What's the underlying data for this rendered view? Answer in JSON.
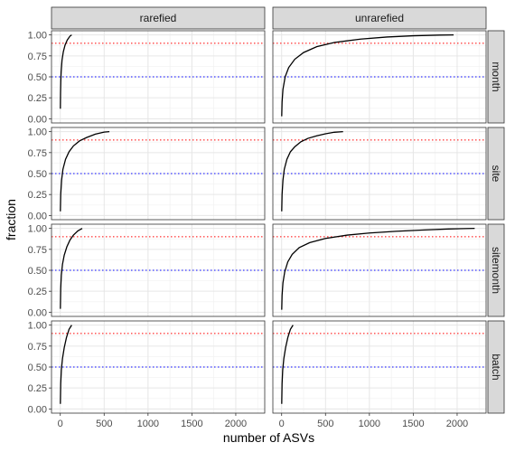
{
  "chart_data": {
    "type": "line",
    "xlabel": "number of ASVs",
    "ylabel": "fraction",
    "xlim": [
      -100,
      2330
    ],
    "ylim": [
      -0.05,
      1.05
    ],
    "x_ticks": [
      0,
      500,
      1000,
      1500,
      2000
    ],
    "y_ticks": [
      0.0,
      0.25,
      0.5,
      0.75,
      1.0
    ],
    "x_tick_labels": [
      "0",
      "500",
      "1000",
      "1500",
      "2000"
    ],
    "y_tick_labels": [
      "0.00",
      "0.25",
      "0.50",
      "0.75",
      "1.00"
    ],
    "columns": [
      "rarefied",
      "unrarefied"
    ],
    "rows": [
      "month",
      "site",
      "sitemonth",
      "batch"
    ],
    "reference_lines": [
      {
        "y": 0.9,
        "color": "#ff0000",
        "style": "dotted"
      },
      {
        "y": 0.5,
        "color": "#0000ff",
        "style": "dotted"
      }
    ],
    "panels": [
      {
        "row": "month",
        "col": "rarefied",
        "x": [
          1,
          3,
          6,
          10,
          20,
          35,
          55,
          80,
          110,
          130
        ],
        "y": [
          0.12,
          0.3,
          0.45,
          0.56,
          0.7,
          0.8,
          0.88,
          0.94,
          0.985,
          1.0
        ]
      },
      {
        "row": "month",
        "col": "unrarefied",
        "x": [
          1,
          5,
          15,
          40,
          80,
          150,
          250,
          400,
          600,
          900,
          1200,
          1500,
          1800,
          1960
        ],
        "y": [
          0.03,
          0.2,
          0.35,
          0.5,
          0.61,
          0.71,
          0.79,
          0.86,
          0.91,
          0.95,
          0.975,
          0.99,
          0.998,
          1.0
        ]
      },
      {
        "row": "site",
        "col": "rarefied",
        "x": [
          1,
          5,
          15,
          30,
          60,
          100,
          150,
          220,
          300,
          400,
          500,
          560
        ],
        "y": [
          0.05,
          0.25,
          0.42,
          0.55,
          0.67,
          0.76,
          0.83,
          0.89,
          0.93,
          0.97,
          0.995,
          1.0
        ]
      },
      {
        "row": "site",
        "col": "unrarefied",
        "x": [
          1,
          5,
          15,
          30,
          60,
          100,
          150,
          220,
          300,
          400,
          500,
          600,
          700
        ],
        "y": [
          0.05,
          0.25,
          0.42,
          0.55,
          0.67,
          0.76,
          0.82,
          0.88,
          0.92,
          0.95,
          0.975,
          0.993,
          1.0
        ]
      },
      {
        "row": "sitemonth",
        "col": "rarefied",
        "x": [
          1,
          5,
          12,
          25,
          45,
          75,
          110,
          150,
          200,
          250
        ],
        "y": [
          0.04,
          0.28,
          0.44,
          0.57,
          0.68,
          0.78,
          0.86,
          0.92,
          0.97,
          1.0
        ]
      },
      {
        "row": "sitemonth",
        "col": "unrarefied",
        "x": [
          1,
          5,
          15,
          35,
          70,
          120,
          200,
          320,
          500,
          750,
          1000,
          1300,
          1600,
          1900,
          2200
        ],
        "y": [
          0.03,
          0.2,
          0.35,
          0.48,
          0.6,
          0.69,
          0.77,
          0.83,
          0.88,
          0.92,
          0.945,
          0.965,
          0.98,
          0.993,
          1.0
        ]
      },
      {
        "row": "batch",
        "col": "rarefied",
        "x": [
          1,
          5,
          12,
          25,
          45,
          70,
          100,
          130
        ],
        "y": [
          0.06,
          0.3,
          0.46,
          0.6,
          0.73,
          0.85,
          0.95,
          1.0
        ]
      },
      {
        "row": "batch",
        "col": "unrarefied",
        "x": [
          1,
          5,
          12,
          25,
          45,
          70,
          100,
          130
        ],
        "y": [
          0.06,
          0.3,
          0.46,
          0.6,
          0.73,
          0.85,
          0.95,
          1.0
        ]
      }
    ]
  }
}
